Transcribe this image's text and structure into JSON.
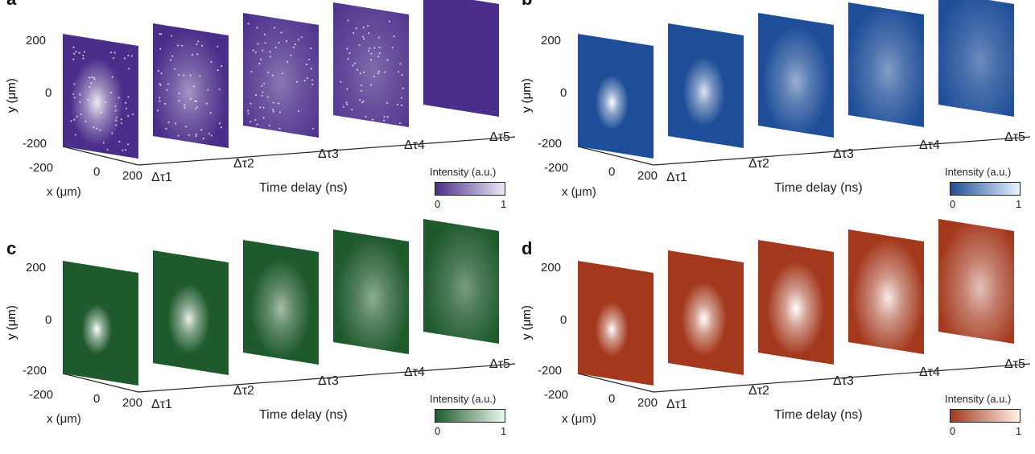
{
  "panels": [
    {
      "label": "a",
      "color": "#4b2e8a",
      "light": "#ece8f6",
      "spot": [
        0.9,
        0.5,
        0.35,
        0.3,
        0.0
      ],
      "size": [
        0.35,
        0.5,
        0.7,
        0.8,
        1
      ],
      "speckle": true
    },
    {
      "label": "b",
      "color": "#1e4e98",
      "light": "#eaf2ff",
      "spot": [
        1,
        0.85,
        0.55,
        0.45,
        0.35
      ],
      "size": [
        0.22,
        0.28,
        0.45,
        0.55,
        0.6
      ],
      "speckle": false
    },
    {
      "label": "c",
      "color": "#1f5a2c",
      "light": "#eaf8ec",
      "spot": [
        1,
        0.9,
        0.6,
        0.5,
        0.4
      ],
      "size": [
        0.2,
        0.28,
        0.4,
        0.5,
        0.55
      ],
      "speckle": false
    },
    {
      "label": "d",
      "color": "#a3381c",
      "light": "#fff3ea",
      "spot": [
        1,
        1,
        1,
        0.9,
        0.7
      ],
      "size": [
        0.22,
        0.3,
        0.38,
        0.48,
        0.58
      ],
      "speckle": false
    }
  ],
  "axes": {
    "y_label": "y (μm)",
    "x_label": "x (μm)",
    "y_ticks": [
      "200",
      "0",
      "-200"
    ],
    "x_ticks": [
      "-200",
      "0",
      "200"
    ],
    "time_label": "Time delay (ns)",
    "delays": [
      "Δτ1",
      "Δτ2",
      "Δτ3",
      "Δτ4",
      "Δτ5"
    ],
    "colorbar_title": "Intensity (a.u.)",
    "colorbar_min": "0",
    "colorbar_max": "1"
  }
}
